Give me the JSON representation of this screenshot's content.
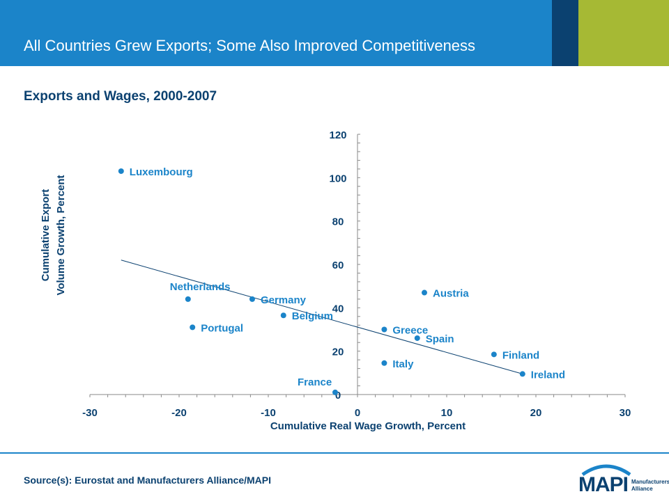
{
  "header": {
    "title": "All Countries Grew Exports; Some Also Improved Competitiveness"
  },
  "subtitle": "Exports and Wages, 2000-2007",
  "source": "Source(s): Eurostat and Manufacturers Alliance/MAPI",
  "logo": {
    "main": "MAPI",
    "sub_line1": "Manufacturers",
    "sub_line2": "Alliance"
  },
  "colors": {
    "header": "#1b84c9",
    "accent_dark": "#0b4170",
    "accent_green": "#a6b934",
    "axis_text": "#0b4170",
    "point": "#1b84c9",
    "label": "#1b84c9",
    "trend": "#0b4170"
  },
  "chart_data": {
    "type": "scatter",
    "xlabel": "Cumulative Real Wage Growth, Percent",
    "ylabel_line1": "Cumulative Export",
    "ylabel_line2": "Volume Growth, Percent",
    "xlim": [
      -30,
      30
    ],
    "ylim": [
      0,
      120
    ],
    "x_ticks": [
      -30,
      -20,
      -10,
      0,
      10,
      20,
      30
    ],
    "y_ticks": [
      0,
      20,
      40,
      60,
      80,
      100,
      120
    ],
    "grid": false,
    "points": [
      {
        "label": "Luxembourg",
        "x": -26.5,
        "y": 103
      },
      {
        "label": "Netherlands",
        "x": -19,
        "y": 44
      },
      {
        "label": "Germany",
        "x": -11.8,
        "y": 44
      },
      {
        "label": "Belgium",
        "x": -8.3,
        "y": 36.5
      },
      {
        "label": "Portugal",
        "x": -18.5,
        "y": 31
      },
      {
        "label": "France",
        "x": -2.5,
        "y": 1
      },
      {
        "label": "Austria",
        "x": 7.5,
        "y": 47
      },
      {
        "label": "Greece",
        "x": 3,
        "y": 30
      },
      {
        "label": "Spain",
        "x": 6.7,
        "y": 26
      },
      {
        "label": "Italy",
        "x": 3,
        "y": 14.5
      },
      {
        "label": "Finland",
        "x": 15.3,
        "y": 18.5
      },
      {
        "label": "Ireland",
        "x": 18.5,
        "y": 9.5
      }
    ],
    "trendline": [
      {
        "x": -26.5,
        "y": 62
      },
      {
        "x": 18.5,
        "y": 9.5
      }
    ]
  }
}
